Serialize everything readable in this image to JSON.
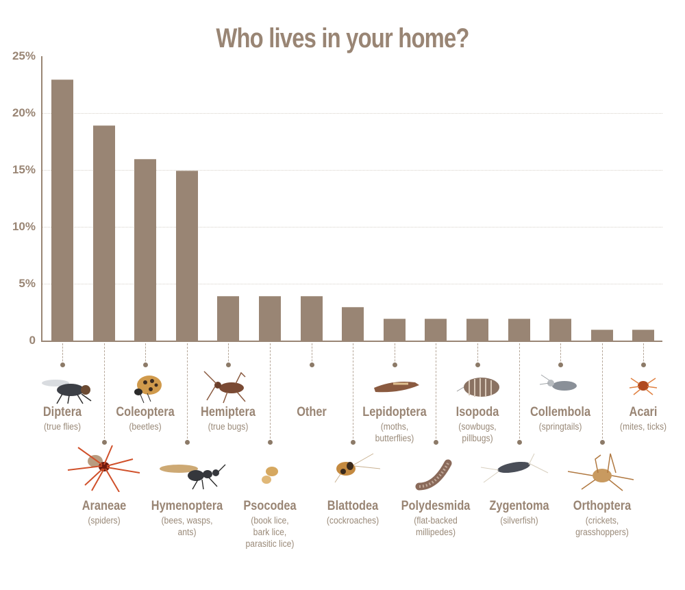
{
  "title": "Who lives in your home?",
  "colors": {
    "bar": "#998574",
    "text": "#998574",
    "grid": "#d6d0c8"
  },
  "y_ticks": [
    "25%",
    "20%",
    "15%",
    "10%",
    "5%",
    "0"
  ],
  "categories": [
    {
      "name": "Diptera",
      "sub": "(true flies)",
      "icon": "fly-icon"
    },
    {
      "name": "Araneae",
      "sub": "(spiders)",
      "icon": "spider-icon"
    },
    {
      "name": "Coleoptera",
      "sub": "(beetles)",
      "icon": "beetle-icon"
    },
    {
      "name": "Hymenoptera",
      "sub": "(bees, wasps,\nants)",
      "icon": "ant-icon"
    },
    {
      "name": "Hemiptera",
      "sub": "(true bugs)",
      "icon": "bug-icon"
    },
    {
      "name": "Psocodea",
      "sub": "(book lice,\nbark lice,\nparasitic lice)",
      "icon": "louse-icon"
    },
    {
      "name": "Other",
      "sub": "",
      "icon": ""
    },
    {
      "name": "Blattodea",
      "sub": "(cockroaches)",
      "icon": "cockroach-icon"
    },
    {
      "name": "Lepidoptera",
      "sub": "(moths,\nbutterflies)",
      "icon": "moth-icon"
    },
    {
      "name": "Polydesmida",
      "sub": "(flat-backed\nmillipedes)",
      "icon": "millipede-icon"
    },
    {
      "name": "Isopoda",
      "sub": "(sowbugs,\npillbugs)",
      "icon": "pillbug-icon"
    },
    {
      "name": "Zygentoma",
      "sub": "(silverfish)",
      "icon": "silverfish-icon"
    },
    {
      "name": "Collembola",
      "sub": "(springtails)",
      "icon": "springtail-icon"
    },
    {
      "name": "Orthoptera",
      "sub": "(crickets,\ngrasshoppers)",
      "icon": "cricket-icon"
    },
    {
      "name": "Acari",
      "sub": "(mites, ticks)",
      "icon": "mite-icon"
    }
  ],
  "chart_data": {
    "type": "bar",
    "title": "Who lives in your home?",
    "xlabel": "",
    "ylabel": "",
    "ylim": [
      0,
      25
    ],
    "y_tick_labels": [
      "0",
      "5%",
      "10%",
      "15%",
      "20%",
      "25%"
    ],
    "grid": true,
    "categories": [
      "Diptera",
      "Araneae",
      "Coleoptera",
      "Hymenoptera",
      "Hemiptera",
      "Psocodea",
      "Other",
      "Blattodea",
      "Lepidoptera",
      "Polydesmida",
      "Isopoda",
      "Zygentoma",
      "Collembola",
      "Orthoptera",
      "Acari"
    ],
    "category_common_names": [
      "true flies",
      "spiders",
      "beetles",
      "bees, wasps, ants",
      "true bugs",
      "book lice, bark lice, parasitic lice",
      "",
      "cockroaches",
      "moths, butterflies",
      "flat-backed millipedes",
      "sowbugs, pillbugs",
      "silverfish",
      "springtails",
      "crickets, grasshoppers",
      "mites, ticks"
    ],
    "values": [
      23,
      19,
      16,
      15,
      4,
      4,
      4,
      3,
      2,
      2,
      2,
      2,
      2,
      1,
      1
    ],
    "unit": "%"
  }
}
